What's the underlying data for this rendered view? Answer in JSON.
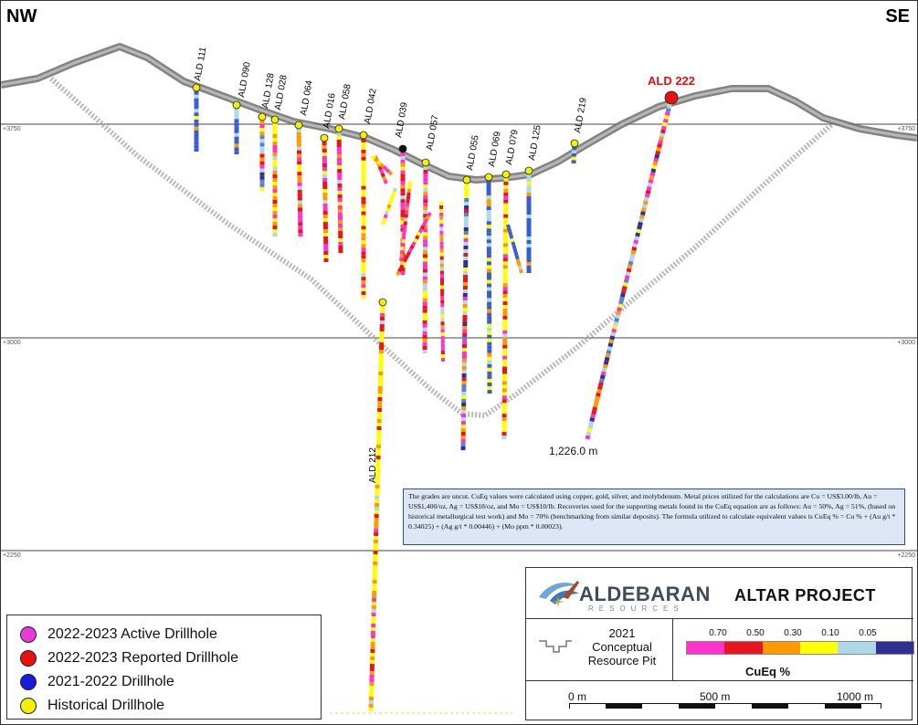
{
  "corners": {
    "left": "NW",
    "right": "SE"
  },
  "elevations": [
    "+3750",
    "+3000",
    "+2250"
  ],
  "drillholes": [
    {
      "name": "ALD 111"
    },
    {
      "name": "ALD 090"
    },
    {
      "name": "ALD 128"
    },
    {
      "name": "ALD 028"
    },
    {
      "name": "ALD 064"
    },
    {
      "name": "ALD 016"
    },
    {
      "name": "ALD 058"
    },
    {
      "name": "ALD 042"
    },
    {
      "name": "ALD 039"
    },
    {
      "name": "ALD 057"
    },
    {
      "name": "ALD 055"
    },
    {
      "name": "ALD 069"
    },
    {
      "name": "ALD 079"
    },
    {
      "name": "ALD 125"
    },
    {
      "name": "ALD 219"
    },
    {
      "name": "ALD 222"
    },
    {
      "name": "ALD 212"
    }
  ],
  "total_depth_label": "1,226.0 m",
  "disclaimer": "The grades are uncut. CuEq values were calculated using copper, gold, silver, and molybdenum. Metal prices utilized for the calculations are Cu = US$3.00/lb, Au = US$1,400/oz, Ag = US$18/oz, and Mo = US$10/lb. Recoveries used for the supporting metals found in the CuEq equation are as follows: Au = 50%, Ag = 51%, (based on historical metallurgical test work) and Mo = 70% (benchmarking from similar deposits). The formula utilized to calculate equivalent values is CuEq % = Cu % + (Au g/t * 0.34025) + (Ag g/t * 0.00446) + (Mo ppm * 0.00023).",
  "legend": {
    "items": [
      {
        "label": "2022-2023 Active Drillhole",
        "color": "#e83ad8"
      },
      {
        "label": "2022-2023 Reported Drillhole",
        "color": "#e81010"
      },
      {
        "label": "2021-2022 Drillhole",
        "color": "#1a1ad8"
      },
      {
        "label": "Historical Drillhole",
        "color": "#f2f200"
      }
    ]
  },
  "titlebox": {
    "logo_name": "ALDEBARAN",
    "logo_sub": "RESOURCES",
    "project": "ALTAR PROJECT",
    "pit_label": "2021\nConceptual\nResource Pit",
    "cueq_values": [
      "0.70",
      "0.50",
      "0.30",
      "0.10",
      "0.05"
    ],
    "cueq_colors": [
      "#ff33cc",
      "#e8141e",
      "#ff9900",
      "#ffff00",
      "#add8e6",
      "#303090"
    ],
    "cueq_label": "CuEq %",
    "scale_labels": [
      "0 m",
      "500 m",
      "1000 m"
    ]
  }
}
